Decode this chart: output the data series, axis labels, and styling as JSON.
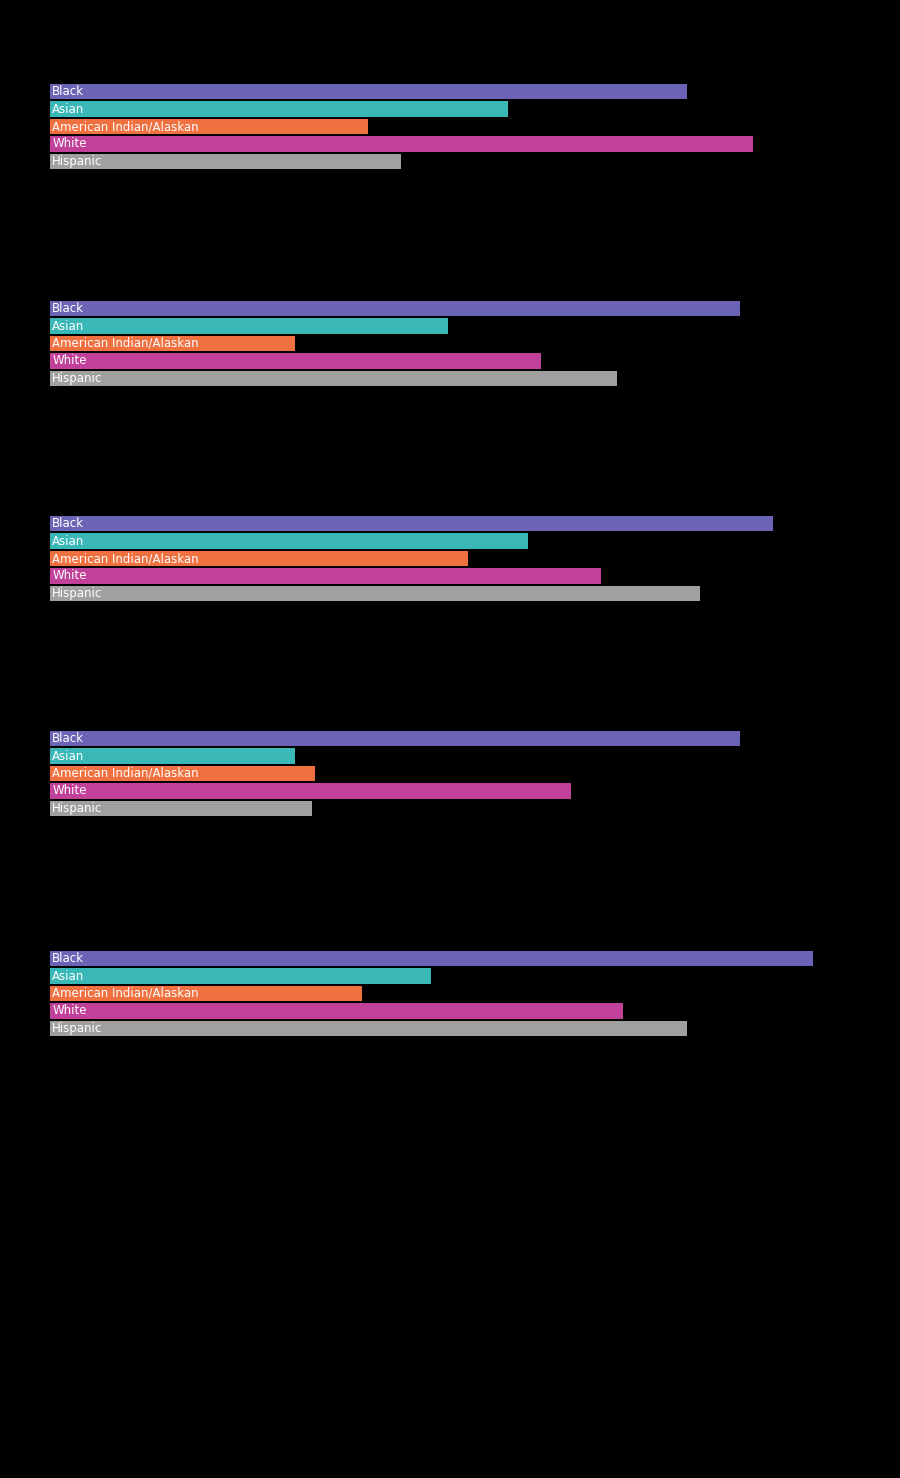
{
  "groups": [
    {
      "bars": [
        {
          "label": "Black",
          "value": 480,
          "color": "#6b63b5"
        },
        {
          "label": "Asian",
          "value": 345,
          "color": "#3ab8b8"
        },
        {
          "label": "American Indian/Alaskan",
          "value": 240,
          "color": "#f07040"
        },
        {
          "label": "White",
          "value": 530,
          "color": "#c0409a"
        },
        {
          "label": "Hispanic",
          "value": 265,
          "color": "#a0a0a0"
        }
      ]
    },
    {
      "bars": [
        {
          "label": "Black",
          "value": 520,
          "color": "#6b63b5"
        },
        {
          "label": "Asian",
          "value": 300,
          "color": "#3ab8b8"
        },
        {
          "label": "American Indian/Alaskan",
          "value": 185,
          "color": "#f07040"
        },
        {
          "label": "White",
          "value": 370,
          "color": "#c0409a"
        },
        {
          "label": "Hispanic",
          "value": 427,
          "color": "#a0a0a0"
        }
      ]
    },
    {
      "bars": [
        {
          "label": "Black",
          "value": 545,
          "color": "#6b63b5"
        },
        {
          "label": "Asian",
          "value": 360,
          "color": "#3ab8b8"
        },
        {
          "label": "American Indian/Alaskan",
          "value": 315,
          "color": "#f07040"
        },
        {
          "label": "White",
          "value": 415,
          "color": "#c0409a"
        },
        {
          "label": "Hispanic",
          "value": 490,
          "color": "#a0a0a0"
        }
      ]
    },
    {
      "bars": [
        {
          "label": "Black",
          "value": 520,
          "color": "#6b63b5"
        },
        {
          "label": "Asian",
          "value": 185,
          "color": "#3ab8b8"
        },
        {
          "label": "American Indian/Alaskan",
          "value": 200,
          "color": "#f07040"
        },
        {
          "label": "White",
          "value": 393,
          "color": "#c0409a"
        },
        {
          "label": "Hispanic",
          "value": 198,
          "color": "#a0a0a0"
        }
      ]
    },
    {
      "bars": [
        {
          "label": "Black",
          "value": 575,
          "color": "#6b63b5"
        },
        {
          "label": "Asian",
          "value": 287,
          "color": "#3ab8b8"
        },
        {
          "label": "American Indian/Alaskan",
          "value": 235,
          "color": "#f07040"
        },
        {
          "label": "White",
          "value": 432,
          "color": "#c0409a"
        },
        {
          "label": "Hispanic",
          "value": 480,
          "color": "#a0a0a0"
        }
      ]
    }
  ],
  "background_color": "#000000",
  "text_color": "#ffffff",
  "bar_height": 0.88,
  "label_fontsize": 8.5,
  "max_value": 620,
  "fig_width": 9.0,
  "fig_height": 14.78,
  "slot_heights": [
    83,
    87,
    130,
    87,
    128,
    87,
    128,
    87,
    133,
    87,
    441
  ]
}
